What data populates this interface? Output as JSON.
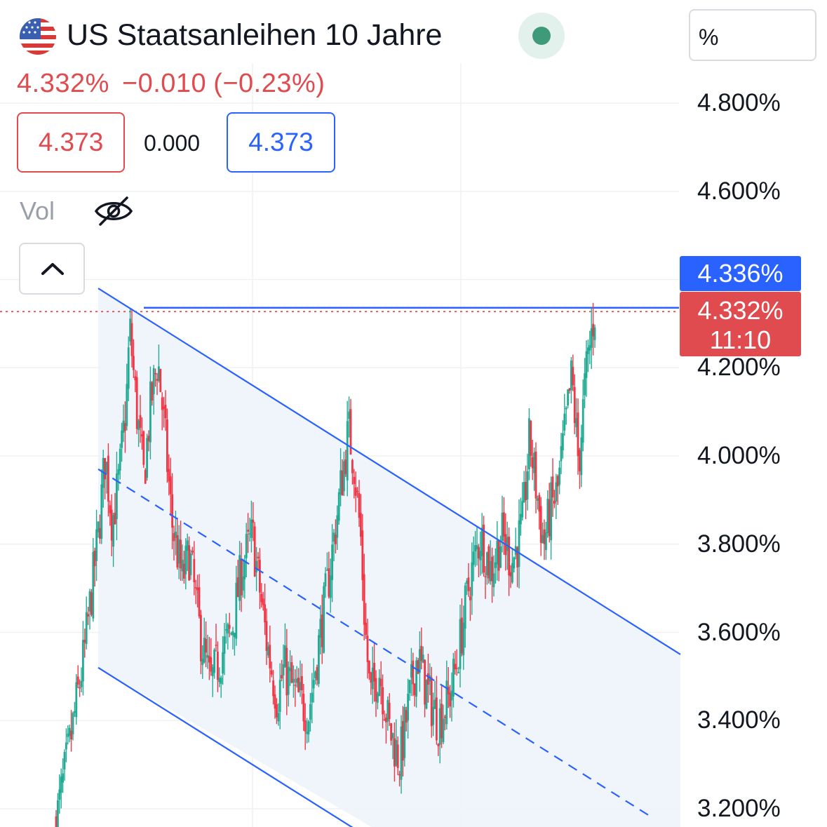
{
  "header": {
    "symbol_name": "US Staatsanleihen 10 Jahre",
    "last": "4.332%",
    "change": "−0.010",
    "change_pct": "(−0.23%)",
    "sell_price": "4.373",
    "spread": "0.000",
    "buy_price": "4.373",
    "volume_label": "Vol",
    "unit_button": "%"
  },
  "colors": {
    "up": "#22ab94",
    "down": "#f23645",
    "channel": "#2962ff",
    "channel_fill": "#eef3fb",
    "price_tag": "#e04b4f",
    "line_tag": "#2962ff"
  },
  "icons": {
    "flag": "us-flag-icon",
    "status": "market-open-dot-icon",
    "visibility": "eye-off-icon",
    "collapse": "chevron-up-icon"
  },
  "price_tags": {
    "line_price": "4.336%",
    "last_price": "4.332%",
    "countdown": "11:10"
  },
  "chart_data": {
    "type": "candlestick",
    "y_unit": "%",
    "y_ticks": [
      "4.800%",
      "4.600%",
      "4.200%",
      "4.000%",
      "3.800%",
      "3.600%",
      "3.400%",
      "3.200%"
    ],
    "y_tick_values": [
      4.8,
      4.6,
      4.2,
      4.0,
      3.8,
      3.6,
      3.4,
      3.2
    ],
    "ylim": [
      3.17,
      4.97
    ],
    "x_range": [
      0,
      100
    ],
    "grid": true,
    "horizontal_line": 4.336,
    "last_value": 4.332,
    "channel": {
      "upper": [
        [
          14,
          4.38
        ],
        [
          97,
          3.55
        ]
      ],
      "middle": [
        [
          14,
          3.97
        ],
        [
          93,
          3.18
        ]
      ],
      "lower": [
        [
          14,
          3.52
        ],
        [
          53,
          3.13
        ]
      ],
      "fill_end_x": 97
    },
    "close_path": [
      [
        8,
        3.17
      ],
      [
        10,
        3.35
      ],
      [
        12,
        3.55
      ],
      [
        14,
        3.82
      ],
      [
        15,
        4.0
      ],
      [
        16,
        3.85
      ],
      [
        17,
        3.95
      ],
      [
        18,
        4.12
      ],
      [
        18.5,
        4.29
      ],
      [
        19.5,
        4.1
      ],
      [
        20.5,
        3.95
      ],
      [
        21.5,
        4.12
      ],
      [
        22.5,
        4.22
      ],
      [
        23.5,
        4.05
      ],
      [
        24.5,
        3.85
      ],
      [
        26,
        3.72
      ],
      [
        27,
        3.78
      ],
      [
        28.5,
        3.6
      ],
      [
        30,
        3.48
      ],
      [
        31.5,
        3.55
      ],
      [
        33,
        3.6
      ],
      [
        34.5,
        3.75
      ],
      [
        36,
        3.82
      ],
      [
        38,
        3.58
      ],
      [
        39.5,
        3.45
      ],
      [
        40.5,
        3.52
      ],
      [
        42,
        3.46
      ],
      [
        44,
        3.42
      ],
      [
        45.5,
        3.58
      ],
      [
        47,
        3.74
      ],
      [
        48.5,
        3.92
      ],
      [
        49.7,
        4.06
      ],
      [
        50.5,
        3.98
      ],
      [
        51.5,
        3.8
      ],
      [
        52,
        3.62
      ],
      [
        52.8,
        3.45
      ],
      [
        54,
        3.52
      ],
      [
        55.5,
        3.38
      ],
      [
        57,
        3.31
      ],
      [
        58.5,
        3.46
      ],
      [
        59.5,
        3.55
      ],
      [
        61,
        3.46
      ],
      [
        62.5,
        3.4
      ],
      [
        64,
        3.45
      ],
      [
        65,
        3.52
      ],
      [
        66,
        3.62
      ],
      [
        67,
        3.72
      ],
      [
        68.5,
        3.82
      ],
      [
        70,
        3.74
      ],
      [
        71.5,
        3.82
      ],
      [
        73,
        3.76
      ],
      [
        74.5,
        3.84
      ],
      [
        75.5,
        4.04
      ],
      [
        76.5,
        3.92
      ],
      [
        77.5,
        3.8
      ],
      [
        78.5,
        3.88
      ],
      [
        79.5,
        3.92
      ],
      [
        80.5,
        4.05
      ],
      [
        81.5,
        4.18
      ],
      [
        82.5,
        3.98
      ],
      [
        83.5,
        4.18
      ],
      [
        84.5,
        4.3
      ],
      [
        85,
        4.35
      ]
    ]
  }
}
